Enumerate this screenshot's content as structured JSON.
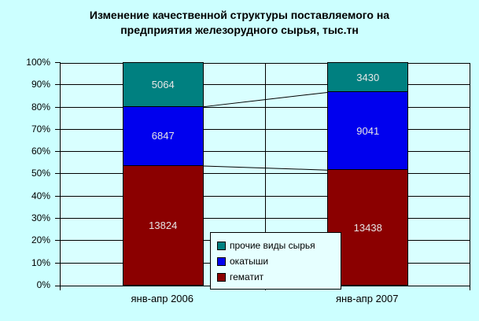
{
  "title": {
    "line1": "Изменение качественной структуры поставляемого на",
    "line2": "предприятия железорудного сырья, тыс.тн"
  },
  "colors": {
    "page_background": "#CCFFFF",
    "plot_background": "#D9FFFF",
    "legend_background": "#E6FFFF",
    "gridline": "#000000",
    "data_label_text": "#E6E6E6",
    "axis_text": "#000000",
    "series_line": "#000000"
  },
  "chart_data": {
    "type": "bar",
    "subtype": "stacked-100-percent",
    "title": "Изменение качественной структуры поставляемого на предприятия железорудного сырья, тыс.тн",
    "categories": [
      "янв-апр 2006",
      "янв-апр 2007"
    ],
    "series": [
      {
        "name": "гематит",
        "color": "#8B0000",
        "values": [
          13824,
          13438
        ]
      },
      {
        "name": "окатыши",
        "color": "#0000EE",
        "values": [
          6847,
          9041
        ]
      },
      {
        "name": "прочие виды сырья",
        "color": "#008080",
        "values": [
          5064,
          3430
        ]
      }
    ],
    "y_ticks": [
      "0%",
      "10%",
      "20%",
      "30%",
      "40%",
      "50%",
      "60%",
      "70%",
      "80%",
      "90%",
      "100%"
    ],
    "ylim": [
      0,
      100
    ],
    "grid": true,
    "series_lines": true,
    "legend_position": "bottom-center-overlay"
  },
  "legend": {
    "items": [
      {
        "label": "прочие виды сырья",
        "color": "#008080"
      },
      {
        "label": "окатыши",
        "color": "#0000EE"
      },
      {
        "label": "гематит",
        "color": "#8B0000"
      }
    ]
  }
}
